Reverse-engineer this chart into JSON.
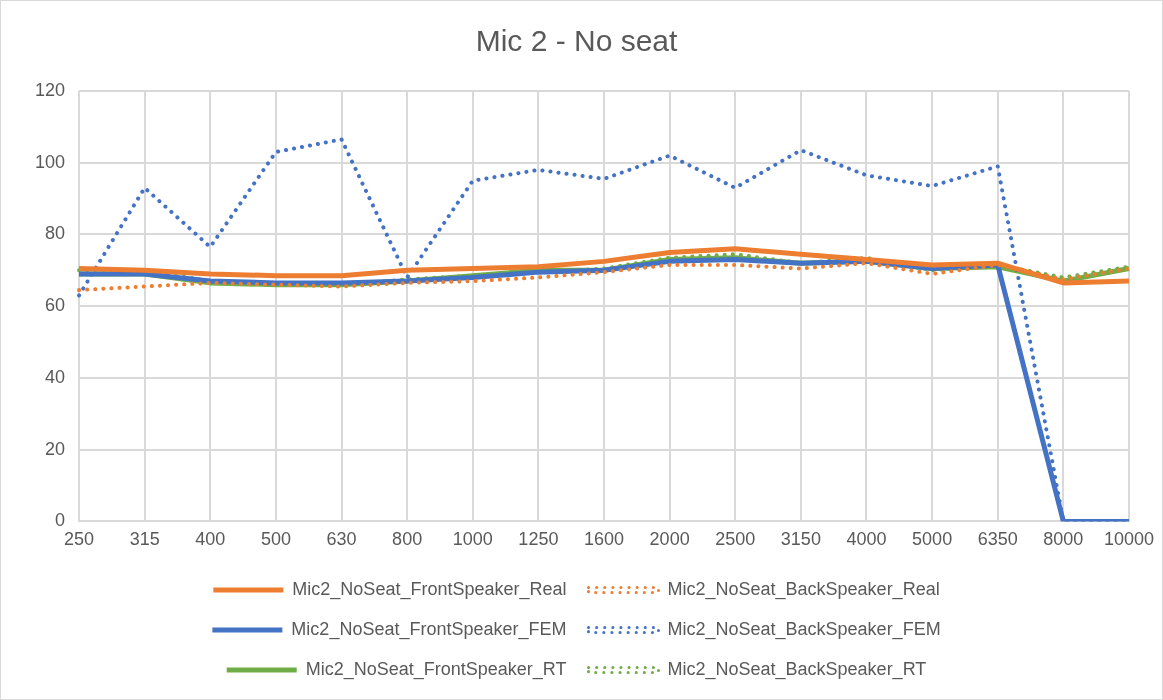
{
  "chart_data": {
    "type": "line",
    "title": "Mic 2 - No seat",
    "categories": [
      "250",
      "315",
      "400",
      "500",
      "630",
      "800",
      "1000",
      "1250",
      "1600",
      "2000",
      "2500",
      "3150",
      "4000",
      "5000",
      "6350",
      "8000",
      "10000"
    ],
    "ylim": [
      0,
      120
    ],
    "yticks": [
      0,
      20,
      40,
      60,
      80,
      100,
      120
    ],
    "grid": true,
    "legend": "bottom",
    "marker": "none",
    "series": [
      {
        "name": "Mic2_NoSeat_FrontSpeaker_Real",
        "color": "#ed7d31",
        "line_style": "solid",
        "values": [
          70.5,
          70,
          69,
          68.5,
          68.5,
          70,
          70.5,
          71,
          72.5,
          75,
          76,
          74.5,
          73,
          71.5,
          72,
          66.5,
          67
        ]
      },
      {
        "name": "Mic2_NoSeat_BackSpeaker_Real",
        "color": "#ed7d31",
        "line_style": "dotted",
        "values": [
          64.5,
          65.5,
          66.5,
          66,
          65.5,
          66.5,
          67,
          68,
          69.5,
          71.5,
          71.5,
          70.5,
          72,
          69,
          71.5,
          67.5,
          70.5
        ]
      },
      {
        "name": "Mic2_NoSeat_FrontSpeaker_FEM",
        "color": "#4472c4",
        "line_style": "solid",
        "values": [
          69,
          69,
          67,
          66.5,
          66.5,
          67,
          68,
          69.5,
          70,
          72.5,
          73,
          72,
          72.5,
          70.5,
          71.5,
          0,
          0
        ]
      },
      {
        "name": "Mic2_NoSeat_BackSpeaker_FEM",
        "color": "#4472c4",
        "line_style": "dotted",
        "values": [
          63,
          93,
          76.5,
          103,
          106.5,
          68,
          95,
          98,
          95.5,
          102,
          93,
          103.5,
          96.5,
          93.5,
          99,
          0,
          0
        ]
      },
      {
        "name": "Mic2_NoSeat_FrontSpeaker_RT",
        "color": "#70ad47",
        "line_style": "solid",
        "values": [
          69,
          69,
          66.5,
          66,
          66,
          67,
          68.5,
          70,
          70,
          73,
          73.5,
          72,
          72.5,
          70.5,
          71,
          67,
          70.5
        ]
      },
      {
        "name": "Mic2_NoSeat_BackSpeaker_RT",
        "color": "#70ad47",
        "line_style": "dotted",
        "values": [
          70,
          70,
          67,
          66.5,
          66,
          67.5,
          68.5,
          69.5,
          70.5,
          73.5,
          74.5,
          72,
          73.5,
          70,
          71.5,
          68,
          71
        ]
      }
    ]
  }
}
